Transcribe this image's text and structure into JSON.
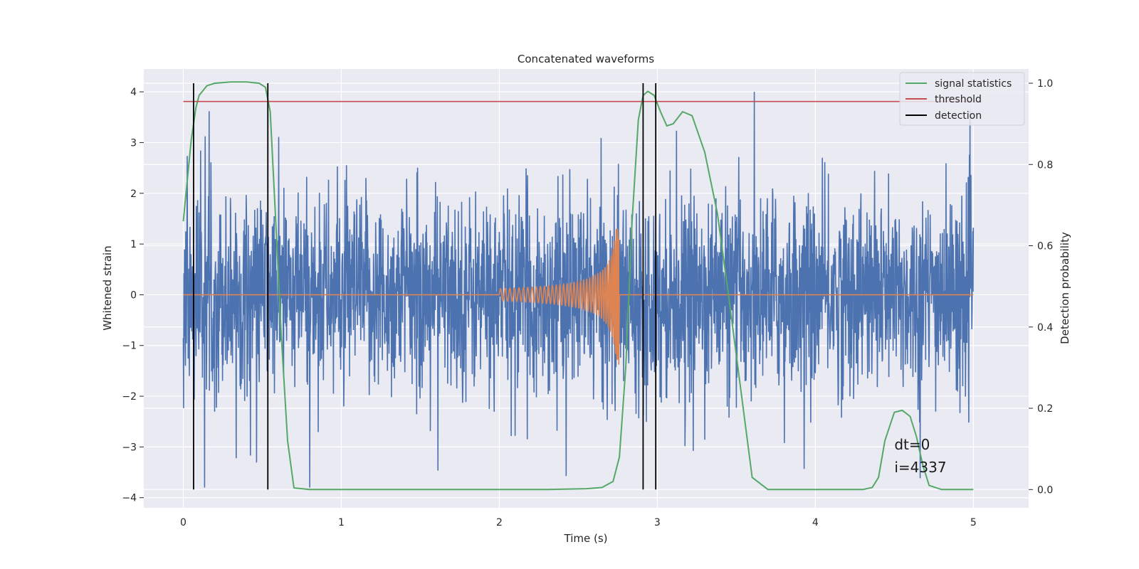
{
  "chart_data": {
    "type": "line",
    "title": "Concatenated waveforms",
    "xlabel": "Time (s)",
    "ylabel": "Whitened strain",
    "y2label": "Detection probability",
    "xlim": [
      -0.25,
      5.35
    ],
    "ylim": [
      -4.2,
      4.45
    ],
    "y2lim": [
      -0.045,
      1.035
    ],
    "x_ticks": [
      0,
      1,
      2,
      3,
      4,
      5
    ],
    "y_ticks": [
      -4,
      -3,
      -2,
      -1,
      0,
      1,
      2,
      3,
      4
    ],
    "y2_ticks": [
      0.0,
      0.2,
      0.4,
      0.6,
      0.8,
      1.0
    ],
    "y2_tick_labels": [
      "0.0",
      "0.2",
      "0.4",
      "0.6",
      "0.8",
      "1.0"
    ],
    "grid": true,
    "legend_position": "top-right",
    "colors": {
      "strain": "#4c72b0",
      "template": "#dd8452",
      "signal_statistics": "#55a868",
      "threshold": "#c44e52",
      "detection": "#000000",
      "axes_background": "#eaeaf2",
      "grid": "#ffffff"
    },
    "series": [
      {
        "key": "strain",
        "axis": "left",
        "description_range": [
          0,
          5
        ],
        "noise_envelope": {
          "typical_peak": 2.2,
          "max_peak": 4.0,
          "min_trough": -3.8
        }
      },
      {
        "key": "template",
        "axis": "left",
        "chirp_start": 2.0,
        "chirp_end": 2.76,
        "start_amplitude": 0.12,
        "peak_amplitude": 1.3,
        "min_amplitude": -1.45
      },
      {
        "name": "signal statistics",
        "axis": "right",
        "x": [
          0.0,
          0.02,
          0.05,
          0.08,
          0.1,
          0.15,
          0.2,
          0.3,
          0.4,
          0.48,
          0.52,
          0.55,
          0.58,
          0.62,
          0.66,
          0.7,
          0.8,
          1.0,
          1.5,
          2.0,
          2.3,
          2.55,
          2.65,
          2.72,
          2.76,
          2.8,
          2.84,
          2.88,
          2.91,
          2.94,
          2.98,
          3.02,
          3.06,
          3.1,
          3.16,
          3.22,
          3.3,
          3.38,
          3.45,
          3.5,
          3.55,
          3.6,
          3.7,
          4.0,
          4.3,
          4.36,
          4.4,
          4.44,
          4.5,
          4.55,
          4.6,
          4.64,
          4.68,
          4.72,
          4.8,
          5.0
        ],
        "values": [
          0.66,
          0.74,
          0.86,
          0.94,
          0.97,
          0.994,
          1.0,
          1.003,
          1.003,
          1.0,
          0.99,
          0.93,
          0.7,
          0.38,
          0.12,
          0.004,
          0.0,
          0.0,
          0.0,
          0.0,
          0.0,
          0.002,
          0.005,
          0.02,
          0.08,
          0.3,
          0.66,
          0.91,
          0.97,
          0.98,
          0.97,
          0.93,
          0.895,
          0.9,
          0.93,
          0.92,
          0.83,
          0.68,
          0.48,
          0.33,
          0.18,
          0.03,
          0.0,
          0.0,
          0.0,
          0.005,
          0.03,
          0.12,
          0.19,
          0.195,
          0.18,
          0.13,
          0.06,
          0.01,
          0.0,
          0.0
        ]
      },
      {
        "name": "threshold",
        "axis": "right",
        "value": 0.955,
        "x_range": [
          0.0,
          5.05
        ]
      },
      {
        "name": "detection",
        "axis": "right",
        "x": [
          0.065,
          0.535,
          2.91,
          2.99
        ],
        "y_range": [
          0.0,
          1.0
        ]
      }
    ],
    "annotations": [
      "dt=0",
      "i=4337"
    ],
    "annotation_x": 4.5,
    "annotation_y_strain": [
      -2.95,
      -3.4
    ]
  }
}
